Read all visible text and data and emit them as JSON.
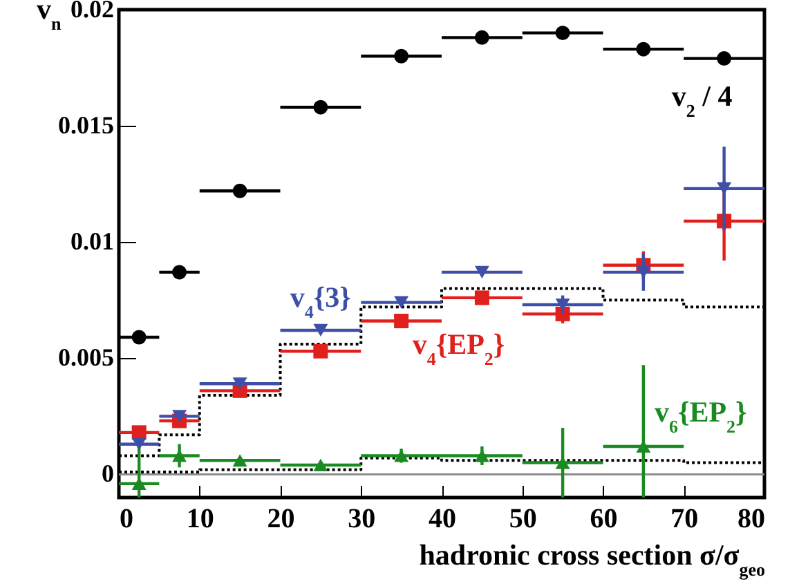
{
  "chart_data": {
    "type": "scatter",
    "xlabel": "hadronic cross section σ/σ$_{geo}$",
    "ylabel": "v$_{n}$",
    "x": [
      2.5,
      7.5,
      15,
      25,
      35,
      45,
      55,
      65,
      75
    ],
    "xlim": [
      0,
      80
    ],
    "xticks": [
      0,
      10,
      20,
      30,
      40,
      50,
      60,
      70,
      80
    ],
    "ylim": [
      -0.001,
      0.02
    ],
    "yticks": [
      0,
      0.005,
      0.01,
      0.015,
      0.02
    ],
    "ref_lines": [
      {
        "axis": "y",
        "value": 0,
        "color": "#8c8c8c",
        "line_style": "solid"
      }
    ],
    "series": [
      {
        "name": "v$_{2}$ / 4",
        "color": "#000000",
        "marker": "circle",
        "values": [
          0.0059,
          0.0087,
          0.0122,
          0.0158,
          0.018,
          0.0188,
          0.019,
          0.0183,
          0.0179
        ],
        "xerrors": [
          2.5,
          2.5,
          5,
          5,
          5,
          5,
          5,
          5,
          5
        ]
      },
      {
        "name": "v$_{4}${3}",
        "color": "#3f4fa8",
        "marker": "triangle-down",
        "values": [
          0.0013,
          0.0025,
          0.0039,
          0.0062,
          0.0074,
          0.0087,
          0.0073,
          0.0087,
          0.0123
        ],
        "xerrors": [
          2.5,
          2.5,
          5,
          5,
          5,
          5,
          5,
          5,
          5
        ],
        "errors": [
          null,
          null,
          null,
          null,
          null,
          null,
          0.0004,
          0.0008,
          0.0018
        ]
      },
      {
        "name": "v$_{4}${EP$_{2}$}",
        "color": "#e0201c",
        "marker": "square",
        "values": [
          0.0018,
          0.0023,
          0.0036,
          0.0053,
          0.0066,
          0.0076,
          0.0069,
          0.009,
          0.0109
        ],
        "xerrors": [
          2.5,
          2.5,
          5,
          5,
          5,
          5,
          5,
          5,
          5
        ],
        "errors": [
          null,
          null,
          null,
          null,
          null,
          null,
          0.0004,
          0.0006,
          0.0017
        ]
      },
      {
        "name": "v$_{6}${EP$_{2}$}",
        "color": "#1a8a22",
        "marker": "triangle",
        "values": [
          -0.0004,
          0.0008,
          0.0006,
          0.0004,
          0.0008,
          0.0008,
          0.0005,
          0.0012,
          null
        ],
        "xerrors": [
          2.5,
          2.5,
          5,
          5,
          5,
          5,
          5,
          5,
          null
        ],
        "errors": [
          [
            -0.001,
            0.0013
          ],
          0.0005,
          null,
          null,
          0.0003,
          0.0004,
          [
            -0.001,
            0.002
          ],
          [
            -0.001,
            0.0047
          ],
          null
        ]
      },
      {
        "type": "step",
        "color": "#000000",
        "line_style": "dotted",
        "x": [
          0,
          5,
          10,
          20,
          30,
          40,
          50,
          60,
          70,
          80
        ],
        "values": [
          0.0008,
          0.0017,
          0.0034,
          0.0056,
          0.0072,
          0.008,
          0.008,
          0.0075,
          0.0072,
          0.0072
        ]
      },
      {
        "type": "step",
        "color": "#000000",
        "line_style": "dotted",
        "x": [
          0,
          5,
          10,
          20,
          30,
          40,
          50,
          60,
          70,
          80
        ],
        "values": [
          0.0001,
          0.0001,
          0.0002,
          0.0002,
          0.0007,
          0.0006,
          0.0006,
          0.0006,
          0.0005,
          0.0005
        ]
      }
    ]
  }
}
